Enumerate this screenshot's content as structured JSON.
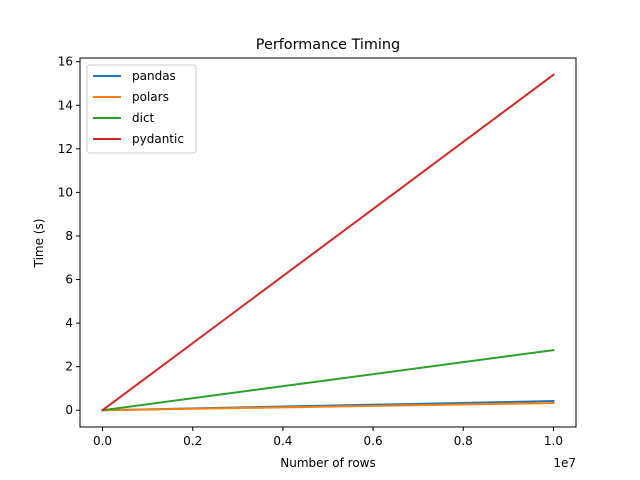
{
  "chart_data": {
    "type": "line",
    "title": "Performance Timing",
    "xlabel": "Number of rows",
    "ylabel": "Time (s)",
    "x_offset_label": "1e7",
    "x": [
      0,
      10000000
    ],
    "xlim": [
      -500000,
      10500000
    ],
    "ylim": [
      -0.77,
      16.17
    ],
    "xticks": [
      0,
      2000000,
      4000000,
      6000000,
      8000000,
      10000000
    ],
    "xtick_labels": [
      "0.0",
      "0.2",
      "0.4",
      "0.6",
      "0.8",
      "1.0"
    ],
    "yticks": [
      0,
      2,
      4,
      6,
      8,
      10,
      12,
      14,
      16
    ],
    "ytick_labels": [
      "0",
      "2",
      "4",
      "6",
      "8",
      "10",
      "12",
      "14",
      "16"
    ],
    "grid": false,
    "legend_position": "upper-left",
    "series": [
      {
        "name": "pandas",
        "color": "#1f77b4",
        "values": [
          0,
          0.42
        ]
      },
      {
        "name": "polars",
        "color": "#ff7f0e",
        "values": [
          0,
          0.33
        ]
      },
      {
        "name": "dict",
        "color": "#2ca02c",
        "values": [
          0,
          2.76
        ]
      },
      {
        "name": "pydantic",
        "color": "#d62728",
        "values": [
          0,
          15.4
        ]
      }
    ]
  }
}
